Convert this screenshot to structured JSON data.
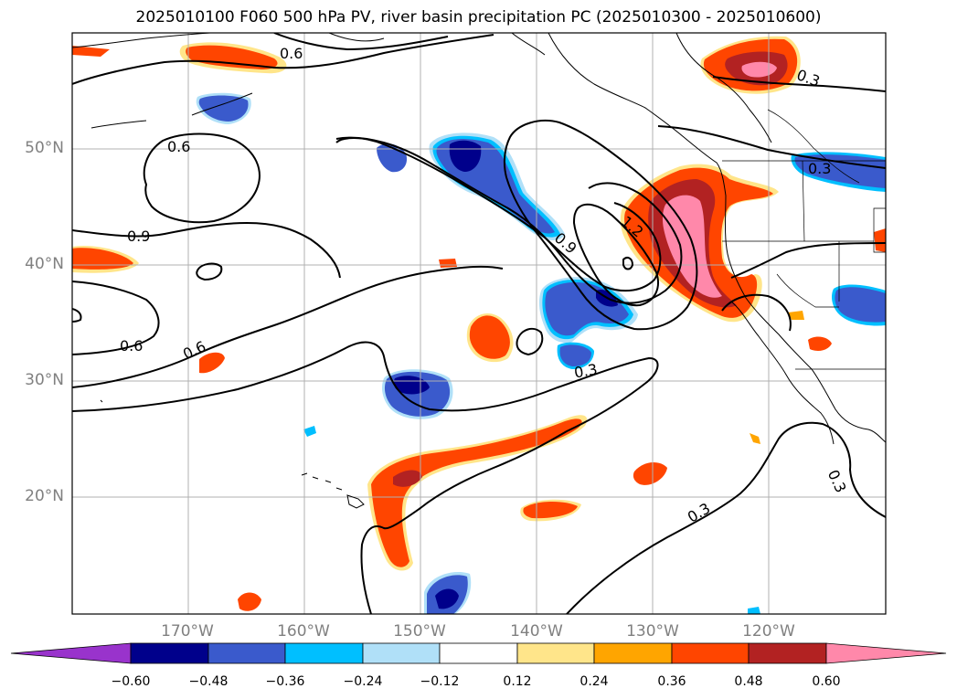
{
  "title": "2025010100 F060 500 hPa PV, river basin precipitation PC (2025010300 - 2025010600)",
  "lat_labels": [
    "50°N",
    "40°N",
    "30°N",
    "20°N"
  ],
  "lon_labels": [
    "170°W",
    "160°W",
    "150°W",
    "140°W",
    "130°W",
    "120°W"
  ],
  "contour_labels": [
    "0.6",
    "0.6",
    "0.9",
    "0.6",
    "0.6",
    "0.9",
    "1.2",
    "0.3",
    "0.3",
    "0.3",
    "0.3",
    "0.3"
  ],
  "colorbar": {
    "ticks": [
      "−0.60",
      "−0.48",
      "−0.36",
      "−0.24",
      "−0.12",
      "0.12",
      "0.24",
      "0.36",
      "0.48",
      "0.60"
    ],
    "colors": [
      "#9933cc",
      "#00008b",
      "#3a5acc",
      "#00bfff",
      "#b0e0f8",
      "#ffffff",
      "#ffe58a",
      "#ffa500",
      "#ff4500",
      "#b22222",
      "#ff88aa"
    ]
  },
  "palette": {
    "pos_low": "#ffe58a",
    "pos_mid": "#ffa500",
    "pos_red": "#ff4500",
    "pos_dark": "#b22222",
    "pos_pink": "#ff88aa",
    "neg_light": "#b0e0f8",
    "neg_cyan": "#00bfff",
    "neg_blue": "#3a5acc",
    "neg_dark": "#00008b"
  }
}
